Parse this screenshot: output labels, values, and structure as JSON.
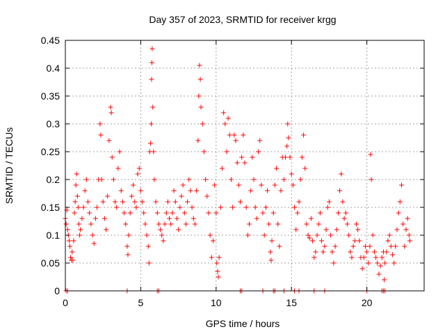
{
  "chart_data": {
    "type": "scatter",
    "title": "Day 357 of 2023, SRMTID for receiver krgg",
    "xlabel": "GPS time / hours",
    "ylabel": "SRMTID / TECUs",
    "xlim": [
      0,
      23.8
    ],
    "ylim": [
      0,
      0.45
    ],
    "x_ticks": [
      0,
      5,
      10,
      15,
      20
    ],
    "x_tick_labels": [
      "0",
      "5",
      "10",
      "15",
      "20"
    ],
    "y_ticks": [
      0,
      0.05,
      0.1,
      0.15,
      0.2,
      0.25,
      0.3,
      0.35,
      0.4,
      0.45
    ],
    "y_tick_labels": [
      "0",
      "0.05",
      "0.1",
      "0.15",
      "0.2",
      "0.25",
      "0.3",
      "0.35",
      "0.4",
      "0.45"
    ],
    "grid": true,
    "marker": "+",
    "color": "#ff0000",
    "series": [
      {
        "name": "SRMTID",
        "points": [
          [
            0.0,
            0.13
          ],
          [
            0.05,
            0.12
          ],
          [
            0.1,
            0.145
          ],
          [
            0.15,
            0.11
          ],
          [
            0.2,
            0.1
          ],
          [
            0.25,
            0.09
          ],
          [
            0.3,
            0.08
          ],
          [
            0.35,
            0.06
          ],
          [
            0.4,
            0.055
          ],
          [
            0.45,
            0.07
          ],
          [
            0.5,
            0.055
          ],
          [
            0.55,
            0.09
          ],
          [
            0.6,
            0.14
          ],
          [
            0.65,
            0.16
          ],
          [
            0.7,
            0.19
          ],
          [
            0.75,
            0.21
          ],
          [
            0.8,
            0.17
          ],
          [
            0.85,
            0.15
          ],
          [
            0.9,
            0.12
          ],
          [
            0.95,
            0.1
          ],
          [
            1.0,
            0.11
          ],
          [
            1.1,
            0.13
          ],
          [
            1.2,
            0.15
          ],
          [
            1.3,
            0.18
          ],
          [
            1.4,
            0.2
          ],
          [
            1.5,
            0.16
          ],
          [
            1.6,
            0.14
          ],
          [
            1.7,
            0.12
          ],
          [
            1.8,
            0.1
          ],
          [
            1.9,
            0.085
          ],
          [
            2.0,
            0.13
          ],
          [
            2.1,
            0.15
          ],
          [
            2.2,
            0.2
          ],
          [
            2.3,
            0.3
          ],
          [
            2.35,
            0.28
          ],
          [
            2.4,
            0.2
          ],
          [
            2.5,
            0.16
          ],
          [
            2.6,
            0.13
          ],
          [
            2.7,
            0.11
          ],
          [
            2.8,
            0.17
          ],
          [
            2.9,
            0.27
          ],
          [
            3.0,
            0.33
          ],
          [
            3.05,
            0.32
          ],
          [
            3.1,
            0.24
          ],
          [
            3.2,
            0.2
          ],
          [
            3.3,
            0.16
          ],
          [
            3.4,
            0.15
          ],
          [
            3.5,
            0.22
          ],
          [
            3.6,
            0.25
          ],
          [
            3.7,
            0.18
          ],
          [
            3.8,
            0.16
          ],
          [
            3.9,
            0.14
          ],
          [
            4.0,
            0.12
          ],
          [
            4.1,
            0.08
          ],
          [
            4.15,
            0.065
          ],
          [
            4.2,
            0.1
          ],
          [
            4.3,
            0.14
          ],
          [
            4.4,
            0.17
          ],
          [
            4.5,
            0.19
          ],
          [
            4.6,
            0.16
          ],
          [
            4.7,
            0.15
          ],
          [
            4.8,
            0.21
          ],
          [
            4.9,
            0.22
          ],
          [
            5.0,
            0.18
          ],
          [
            5.1,
            0.16
          ],
          [
            5.2,
            0.14
          ],
          [
            5.3,
            0.12
          ],
          [
            5.4,
            0.1
          ],
          [
            5.5,
            0.08
          ],
          [
            5.55,
            0.05
          ],
          [
            5.6,
            0.25
          ],
          [
            5.65,
            0.265
          ],
          [
            5.7,
            0.3
          ],
          [
            5.72,
            0.38
          ],
          [
            5.74,
            0.41
          ],
          [
            5.76,
            0.435
          ],
          [
            5.8,
            0.33
          ],
          [
            5.85,
            0.25
          ],
          [
            5.9,
            0.2
          ],
          [
            6.0,
            0.16
          ],
          [
            6.1,
            0.14
          ],
          [
            6.2,
            0.12
          ],
          [
            6.3,
            0.11
          ],
          [
            6.4,
            0.1
          ],
          [
            6.5,
            0.09
          ],
          [
            6.6,
            0.12
          ],
          [
            6.7,
            0.14
          ],
          [
            6.8,
            0.16
          ],
          [
            6.9,
            0.13
          ],
          [
            7.0,
            0.12
          ],
          [
            7.1,
            0.14
          ],
          [
            7.2,
            0.18
          ],
          [
            7.3,
            0.16
          ],
          [
            7.4,
            0.13
          ],
          [
            7.5,
            0.11
          ],
          [
            7.6,
            0.15
          ],
          [
            7.7,
            0.17
          ],
          [
            7.8,
            0.19
          ],
          [
            7.9,
            0.14
          ],
          [
            8.0,
            0.12
          ],
          [
            8.1,
            0.16
          ],
          [
            8.2,
            0.2
          ],
          [
            8.3,
            0.18
          ],
          [
            8.4,
            0.15
          ],
          [
            8.5,
            0.13
          ],
          [
            8.6,
            0.12
          ],
          [
            8.7,
            0.18
          ],
          [
            8.8,
            0.27
          ],
          [
            8.85,
            0.35
          ],
          [
            8.9,
            0.405
          ],
          [
            8.95,
            0.38
          ],
          [
            9.0,
            0.33
          ],
          [
            9.1,
            0.3
          ],
          [
            9.2,
            0.25
          ],
          [
            9.3,
            0.2
          ],
          [
            9.4,
            0.17
          ],
          [
            9.5,
            0.14
          ],
          [
            9.6,
            0.1
          ],
          [
            9.7,
            0.06
          ],
          [
            9.8,
            0.09
          ],
          [
            9.9,
            0.19
          ],
          [
            10.0,
            0.14
          ],
          [
            10.05,
            0.05
          ],
          [
            10.1,
            0.035
          ],
          [
            10.15,
            0.025
          ],
          [
            10.2,
            0.06
          ],
          [
            10.3,
            0.15
          ],
          [
            10.4,
            0.22
          ],
          [
            10.5,
            0.32
          ],
          [
            10.6,
            0.3
          ],
          [
            10.7,
            0.25
          ],
          [
            10.8,
            0.31
          ],
          [
            10.9,
            0.28
          ],
          [
            11.0,
            0.2
          ],
          [
            11.1,
            0.15
          ],
          [
            11.2,
            0.28
          ],
          [
            11.3,
            0.27
          ],
          [
            11.4,
            0.23
          ],
          [
            11.5,
            0.19
          ],
          [
            11.6,
            0.16
          ],
          [
            11.7,
            0.24
          ],
          [
            11.8,
            0.28
          ],
          [
            11.9,
            0.23
          ],
          [
            12.0,
            0.15
          ],
          [
            12.1,
            0.1
          ],
          [
            12.2,
            0.12
          ],
          [
            12.3,
            0.18
          ],
          [
            12.4,
            0.24
          ],
          [
            12.5,
            0.2
          ],
          [
            12.6,
            0.15
          ],
          [
            12.7,
            0.13
          ],
          [
            12.8,
            0.25
          ],
          [
            12.9,
            0.27
          ],
          [
            13.0,
            0.19
          ],
          [
            13.1,
            0.14
          ],
          [
            13.2,
            0.1
          ],
          [
            13.3,
            0.15
          ],
          [
            13.4,
            0.18
          ],
          [
            13.5,
            0.12
          ],
          [
            13.6,
            0.07
          ],
          [
            13.65,
            0.055
          ],
          [
            13.7,
            0.09
          ],
          [
            13.8,
            0.14
          ],
          [
            13.9,
            0.19
          ],
          [
            14.0,
            0.22
          ],
          [
            14.1,
            0.12
          ],
          [
            14.2,
            0.08
          ],
          [
            14.3,
            0.18
          ],
          [
            14.4,
            0.24
          ],
          [
            14.5,
            0.2
          ],
          [
            14.6,
            0.24
          ],
          [
            14.7,
            0.26
          ],
          [
            14.75,
            0.3
          ],
          [
            14.8,
            0.275
          ],
          [
            14.9,
            0.24
          ],
          [
            15.0,
            0.21
          ],
          [
            15.1,
            0.19
          ],
          [
            15.2,
            0.15
          ],
          [
            15.3,
            0.11
          ],
          [
            15.4,
            0.14
          ],
          [
            15.5,
            0.16
          ],
          [
            15.6,
            0.2
          ],
          [
            15.7,
            0.24
          ],
          [
            15.8,
            0.28
          ],
          [
            15.9,
            0.22
          ],
          [
            16.0,
            0.12
          ],
          [
            16.1,
            0.1
          ],
          [
            16.2,
            0.095
          ],
          [
            16.3,
            0.13
          ],
          [
            16.4,
            0.09
          ],
          [
            16.5,
            0.06
          ],
          [
            16.6,
            0.07
          ],
          [
            16.7,
            0.1
          ],
          [
            16.8,
            0.12
          ],
          [
            16.9,
            0.14
          ],
          [
            17.0,
            0.09
          ],
          [
            17.1,
            0.07
          ],
          [
            17.2,
            0.08
          ],
          [
            17.3,
            0.11
          ],
          [
            17.4,
            0.15
          ],
          [
            17.5,
            0.16
          ],
          [
            17.6,
            0.1
          ],
          [
            17.7,
            0.07
          ],
          [
            17.8,
            0.05
          ],
          [
            17.9,
            0.08
          ],
          [
            18.0,
            0.11
          ],
          [
            18.1,
            0.14
          ],
          [
            18.2,
            0.18
          ],
          [
            18.3,
            0.21
          ],
          [
            18.4,
            0.16
          ],
          [
            18.5,
            0.13
          ],
          [
            18.6,
            0.14
          ],
          [
            18.7,
            0.12
          ],
          [
            18.8,
            0.1
          ],
          [
            18.9,
            0.07
          ],
          [
            19.0,
            0.06
          ],
          [
            19.1,
            0.08
          ],
          [
            19.2,
            0.09
          ],
          [
            19.3,
            0.12
          ],
          [
            19.4,
            0.11
          ],
          [
            19.5,
            0.09
          ],
          [
            19.6,
            0.06
          ],
          [
            19.7,
            0.04
          ],
          [
            19.8,
            0.06
          ],
          [
            19.9,
            0.08
          ],
          [
            20.0,
            0.07
          ],
          [
            20.1,
            0.05
          ],
          [
            20.2,
            0.08
          ],
          [
            20.25,
            0.245
          ],
          [
            20.3,
            0.2
          ],
          [
            20.4,
            0.1
          ],
          [
            20.5,
            0.07
          ],
          [
            20.6,
            0.06
          ],
          [
            20.7,
            0.05
          ],
          [
            20.8,
            0.03
          ],
          [
            20.9,
            0.045
          ],
          [
            21.0,
            0.06
          ],
          [
            21.1,
            0.07
          ],
          [
            21.15,
            0.02
          ],
          [
            21.2,
            0.05
          ],
          [
            21.3,
            0.07
          ],
          [
            21.4,
            0.09
          ],
          [
            21.5,
            0.1
          ],
          [
            21.6,
            0.08
          ],
          [
            21.7,
            0.065
          ],
          [
            21.8,
            0.05
          ],
          [
            21.9,
            0.08
          ],
          [
            22.0,
            0.11
          ],
          [
            22.1,
            0.14
          ],
          [
            22.2,
            0.16
          ],
          [
            22.3,
            0.19
          ],
          [
            22.4,
            0.12
          ],
          [
            22.5,
            0.08
          ],
          [
            22.6,
            0.11
          ],
          [
            22.7,
            0.13
          ],
          [
            22.8,
            0.1
          ],
          [
            22.85,
            0.09
          ],
          [
            0.05,
            0.0
          ],
          [
            0.15,
            0.0
          ],
          [
            4.1,
            0.0
          ],
          [
            6.1,
            0.0
          ],
          [
            6.2,
            0.0
          ],
          [
            11.6,
            0.0
          ],
          [
            11.7,
            0.0
          ],
          [
            13.1,
            0.0
          ],
          [
            13.8,
            0.0
          ],
          [
            13.9,
            0.0
          ],
          [
            14.5,
            0.0
          ],
          [
            15.2,
            0.0
          ],
          [
            15.5,
            0.0
          ],
          [
            16.5,
            0.0
          ],
          [
            17.2,
            0.0
          ],
          [
            20.0,
            0.0
          ],
          [
            21.0,
            0.0
          ],
          [
            21.1,
            0.0
          ],
          [
            21.2,
            0.0
          ]
        ]
      }
    ]
  }
}
